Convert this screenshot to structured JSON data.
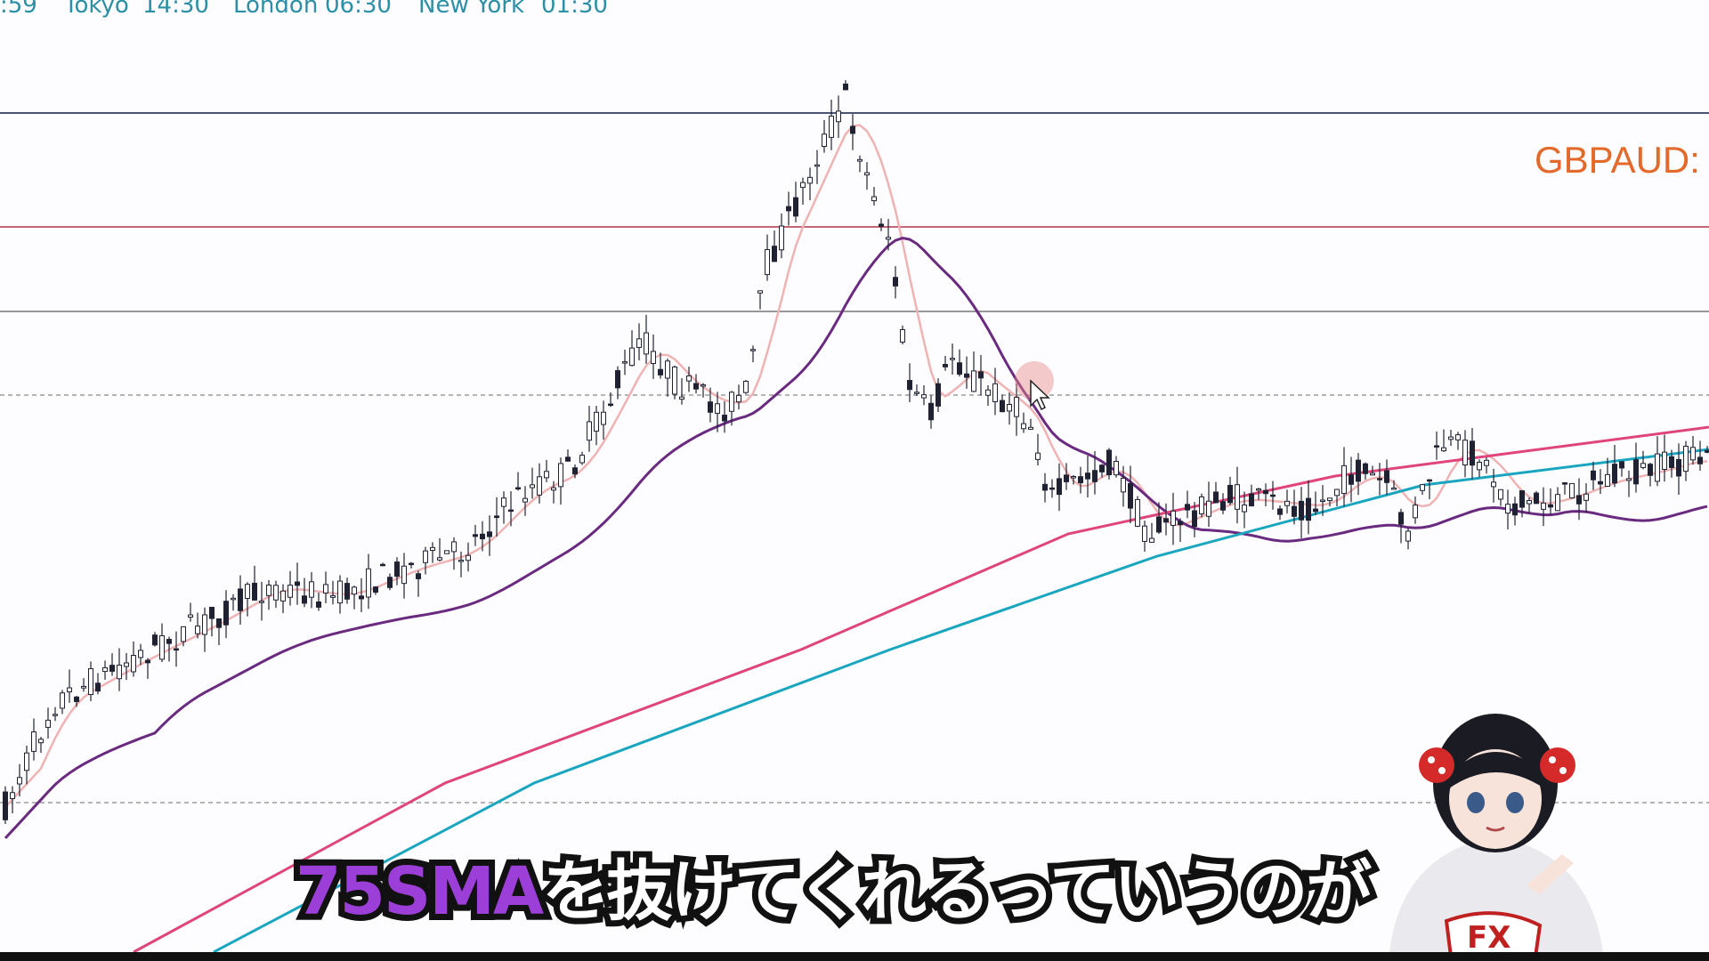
{
  "sessions": {
    "clock_fragment": ":59",
    "tokyo_label": "Tokyo",
    "tokyo_time": "14:30",
    "london_label": "London",
    "london_time": "06:30",
    "newyork_label": "New York",
    "newyork_time": "01:30"
  },
  "symbol_label": "GBPAUD:",
  "subtitle": {
    "highlight": "75SMA",
    "rest": "を抜けてくれるっていうのが"
  },
  "colors": {
    "background": "#fdfdff",
    "session_text": "#2b8fa6",
    "symbol_text": "#e36a2a",
    "ma_fast": "#f0b3b3",
    "ma_75": "#6a2a80",
    "ma_pink": "#e0457a",
    "ma_cyan": "#1ba6c0",
    "hline_blue": "#4a5275",
    "hline_red": "#b0354a",
    "hline_gray": "#777777",
    "candle": "#1f2233",
    "caption_highlight": "#9b3fd8"
  },
  "icons": {
    "cursor": "mouse-pointer-icon",
    "avatar": "vtuber-avatar-icon"
  }
}
